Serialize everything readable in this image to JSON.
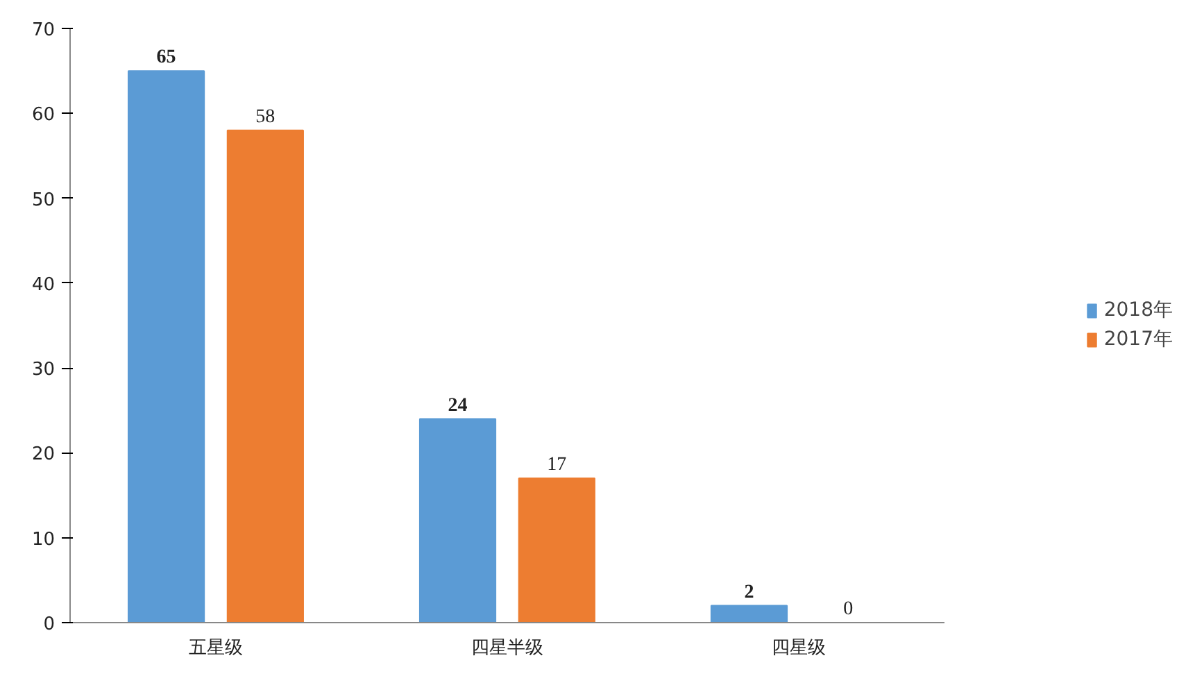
{
  "chart_data": {
    "type": "bar",
    "categories": [
      "五星级",
      "四星半级",
      "四星级"
    ],
    "series": [
      {
        "name": "2018年",
        "color": "#5b9bd5",
        "values": [
          65,
          24,
          2
        ]
      },
      {
        "name": "2017年",
        "color": "#ed7d31",
        "values": [
          58,
          17,
          0
        ]
      }
    ],
    "ylim": [
      0,
      70
    ],
    "yticks": [
      0,
      10,
      20,
      30,
      40,
      50,
      60,
      70
    ],
    "grid": false,
    "legend": "right",
    "data_labels": true
  }
}
